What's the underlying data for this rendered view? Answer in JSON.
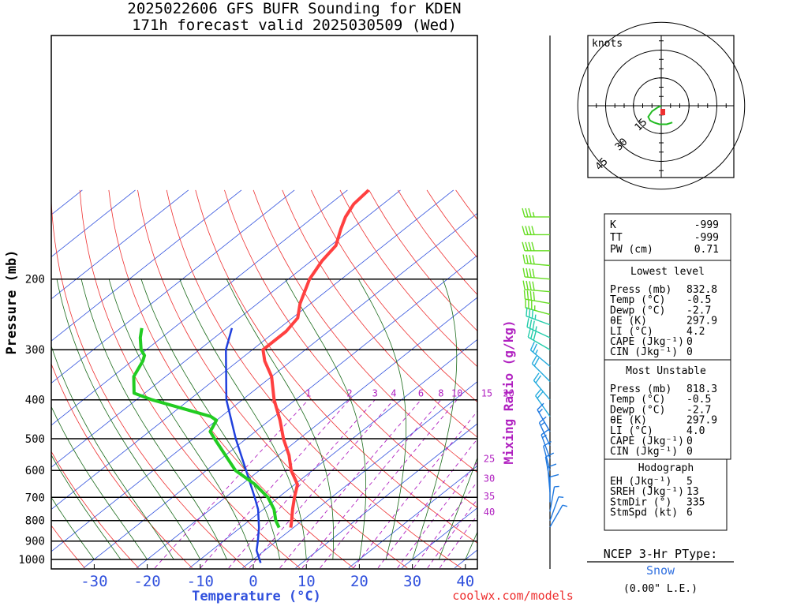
{
  "title_line1": "2025022606 GFS BUFR Sounding for KDEN",
  "title_line2": "171h forecast valid 2025030509 (Wed)",
  "watermark": "coolwx.com/models",
  "colors": {
    "temp": "#ff4040",
    "dewp": "#22cc22",
    "parcel": "#2040dd",
    "isotherm": "#3050dd",
    "dry_adiabat": "#ee3030",
    "moist_adiabat": "#1a6a1a",
    "mixing_ratio": "#b020c0",
    "grid": "#000000",
    "ptype": "#3070e0"
  },
  "chart_data": {
    "type": "skew-t",
    "xlabel": "Temperature (°C)",
    "ylabel": "Pressure (mb)",
    "mixing_ratio_label": "Mixing Ratio (g/kg)",
    "x_ticks": [
      -30,
      -20,
      -10,
      0,
      10,
      20,
      30,
      40
    ],
    "y_ticks": [
      200,
      300,
      400,
      500,
      600,
      700,
      800,
      900,
      1000
    ],
    "temperature_profile": [
      {
        "p": 832.8,
        "t": -0.5
      },
      {
        "p": 800,
        "t": -2
      },
      {
        "p": 750,
        "t": -4.5
      },
      {
        "p": 700,
        "t": -7
      },
      {
        "p": 650,
        "t": -9.5
      },
      {
        "p": 600,
        "t": -14
      },
      {
        "p": 550,
        "t": -18
      },
      {
        "p": 500,
        "t": -23
      },
      {
        "p": 450,
        "t": -28
      },
      {
        "p": 400,
        "t": -34
      },
      {
        "p": 350,
        "t": -40
      },
      {
        "p": 320,
        "t": -45
      },
      {
        "p": 300,
        "t": -48
      },
      {
        "p": 290,
        "t": -48
      },
      {
        "p": 270,
        "t": -48
      },
      {
        "p": 250,
        "t": -49
      },
      {
        "p": 230,
        "t": -52
      },
      {
        "p": 200,
        "t": -56
      },
      {
        "p": 180,
        "t": -58
      },
      {
        "p": 165,
        "t": -59
      },
      {
        "p": 150,
        "t": -62
      },
      {
        "p": 140,
        "t": -64
      },
      {
        "p": 130,
        "t": -65.5
      },
      {
        "p": 120,
        "t": -66
      }
    ],
    "dewpoint_profile": [
      {
        "p": 832.8,
        "t": -2.7
      },
      {
        "p": 800,
        "t": -5
      },
      {
        "p": 750,
        "t": -8
      },
      {
        "p": 700,
        "t": -12
      },
      {
        "p": 650,
        "t": -17.5
      },
      {
        "p": 600,
        "t": -24.5
      },
      {
        "p": 550,
        "t": -30
      },
      {
        "p": 500,
        "t": -36
      },
      {
        "p": 480,
        "t": -38.5
      },
      {
        "p": 450,
        "t": -40
      },
      {
        "p": 440,
        "t": -42
      },
      {
        "p": 400,
        "t": -57
      },
      {
        "p": 385,
        "t": -62
      },
      {
        "p": 350,
        "t": -66
      },
      {
        "p": 320,
        "t": -68
      },
      {
        "p": 310,
        "t": -69
      },
      {
        "p": 300,
        "t": -71
      },
      {
        "p": 280,
        "t": -74
      },
      {
        "p": 265,
        "t": -76
      }
    ],
    "parcel_profile": [
      {
        "p": 1020,
        "t": 2.2
      },
      {
        "p": 950,
        "t": -1.5
      },
      {
        "p": 900,
        "t": -3.5
      },
      {
        "p": 832.8,
        "t": -6.5
      },
      {
        "p": 750,
        "t": -11
      },
      {
        "p": 700,
        "t": -14.5
      },
      {
        "p": 600,
        "t": -22.5
      },
      {
        "p": 500,
        "t": -32
      },
      {
        "p": 400,
        "t": -43
      },
      {
        "p": 300,
        "t": -55
      },
      {
        "p": 265,
        "t": -59
      }
    ],
    "mixing_ratio_lines": [
      1,
      2,
      3,
      4,
      6,
      8,
      10,
      15,
      20,
      25,
      30,
      35,
      40
    ]
  },
  "hodograph": {
    "units_label": "knots",
    "ring_labels": [
      "15",
      "30",
      "45"
    ],
    "points_kt": [
      [
        0,
        0
      ],
      [
        -2,
        1
      ],
      [
        -5,
        3
      ],
      [
        -7,
        6
      ],
      [
        -6,
        8
      ],
      [
        -4,
        9
      ],
      [
        -1,
        10
      ],
      [
        3,
        10
      ],
      [
        6,
        9
      ]
    ]
  },
  "wind_barbs": [
    {
      "p": 140,
      "dir": 270,
      "kt": 35
    },
    {
      "p": 155,
      "dir": 270,
      "kt": 40
    },
    {
      "p": 170,
      "dir": 270,
      "kt": 40
    },
    {
      "p": 185,
      "dir": 275,
      "kt": 40
    },
    {
      "p": 200,
      "dir": 275,
      "kt": 40
    },
    {
      "p": 215,
      "dir": 275,
      "kt": 40
    },
    {
      "p": 230,
      "dir": 280,
      "kt": 40
    },
    {
      "p": 245,
      "dir": 285,
      "kt": 35
    },
    {
      "p": 260,
      "dir": 290,
      "kt": 35
    },
    {
      "p": 280,
      "dir": 295,
      "kt": 35
    },
    {
      "p": 300,
      "dir": 300,
      "kt": 30
    },
    {
      "p": 330,
      "dir": 310,
      "kt": 25
    },
    {
      "p": 360,
      "dir": 315,
      "kt": 20
    },
    {
      "p": 400,
      "dir": 320,
      "kt": 20
    },
    {
      "p": 440,
      "dir": 325,
      "kt": 20
    },
    {
      "p": 480,
      "dir": 330,
      "kt": 15
    },
    {
      "p": 520,
      "dir": 335,
      "kt": 15
    },
    {
      "p": 560,
      "dir": 340,
      "kt": 15
    },
    {
      "p": 600,
      "dir": 345,
      "kt": 10
    },
    {
      "p": 640,
      "dir": 350,
      "kt": 10
    },
    {
      "p": 680,
      "dir": 355,
      "kt": 10
    },
    {
      "p": 720,
      "dir": 0,
      "kt": 10
    },
    {
      "p": 760,
      "dir": 10,
      "kt": 5
    },
    {
      "p": 800,
      "dir": 20,
      "kt": 5
    },
    {
      "p": 830,
      "dir": 30,
      "kt": 5
    }
  ],
  "indices": {
    "k_label": "K",
    "k_value": "-999",
    "tt_label": "TT",
    "tt_value": "-999",
    "pw_label": "PW (cm)",
    "pw_value": "0.71"
  },
  "lowest_level": {
    "header": "Lowest level",
    "rows": [
      {
        "label": "Press (mb)",
        "value": "832.8"
      },
      {
        "label": "Temp (°C)",
        "value": "-0.5"
      },
      {
        "label": "Dewp (°C)",
        "value": "-2.7"
      },
      {
        "label": "θE (K)",
        "value": "297.9"
      },
      {
        "label": "LI (°C)",
        "value": "4.2"
      },
      {
        "label": "CAPE (Jkg⁻¹)",
        "value": "0"
      },
      {
        "label": "CIN (Jkg⁻¹)",
        "value": "0"
      }
    ]
  },
  "most_unstable": {
    "header": "Most Unstable",
    "rows": [
      {
        "label": "Press (mb)",
        "value": "818.3"
      },
      {
        "label": "Temp (°C)",
        "value": "-0.5"
      },
      {
        "label": "Dewp (°C)",
        "value": "-2.7"
      },
      {
        "label": "θE (K)",
        "value": "297.9"
      },
      {
        "label": "LI (°C)",
        "value": "4.0"
      },
      {
        "label": "CAPE (Jkg⁻¹)",
        "value": "0"
      },
      {
        "label": "CIN (Jkg⁻¹)",
        "value": "0"
      }
    ]
  },
  "hodograph_table": {
    "header": "Hodograph",
    "rows": [
      {
        "label": "EH (Jkg⁻¹)",
        "value": "5"
      },
      {
        "label": "SREH (Jkg⁻¹)",
        "value": "13"
      },
      {
        "label": "StmDir (°)",
        "value": "335"
      },
      {
        "label": "StmSpd (kt)",
        "value": "6"
      }
    ]
  },
  "ptype": {
    "header": "NCEP 3-Hr PType:",
    "value": "Snow",
    "amount": "(0.00\" L.E.)"
  }
}
